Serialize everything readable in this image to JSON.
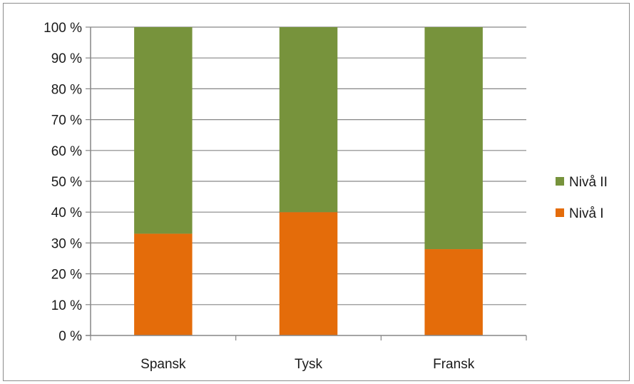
{
  "chart_data": {
    "type": "bar",
    "stacked": true,
    "categories": [
      "Spansk",
      "Tysk",
      "Fransk"
    ],
    "series": [
      {
        "name": "Nivå I",
        "values": [
          33,
          40,
          28
        ],
        "color": "#e46c0a"
      },
      {
        "name": "Nivå II",
        "values": [
          67,
          60,
          72
        ],
        "color": "#77933c"
      }
    ],
    "ylim": [
      0,
      100
    ],
    "yticks": [
      "0 %",
      "10 %",
      "20 %",
      "30 %",
      "40 %",
      "50 %",
      "60 %",
      "70 %",
      "80 %",
      "90 %",
      "100 %"
    ],
    "grid": true,
    "legend_position": "right"
  }
}
